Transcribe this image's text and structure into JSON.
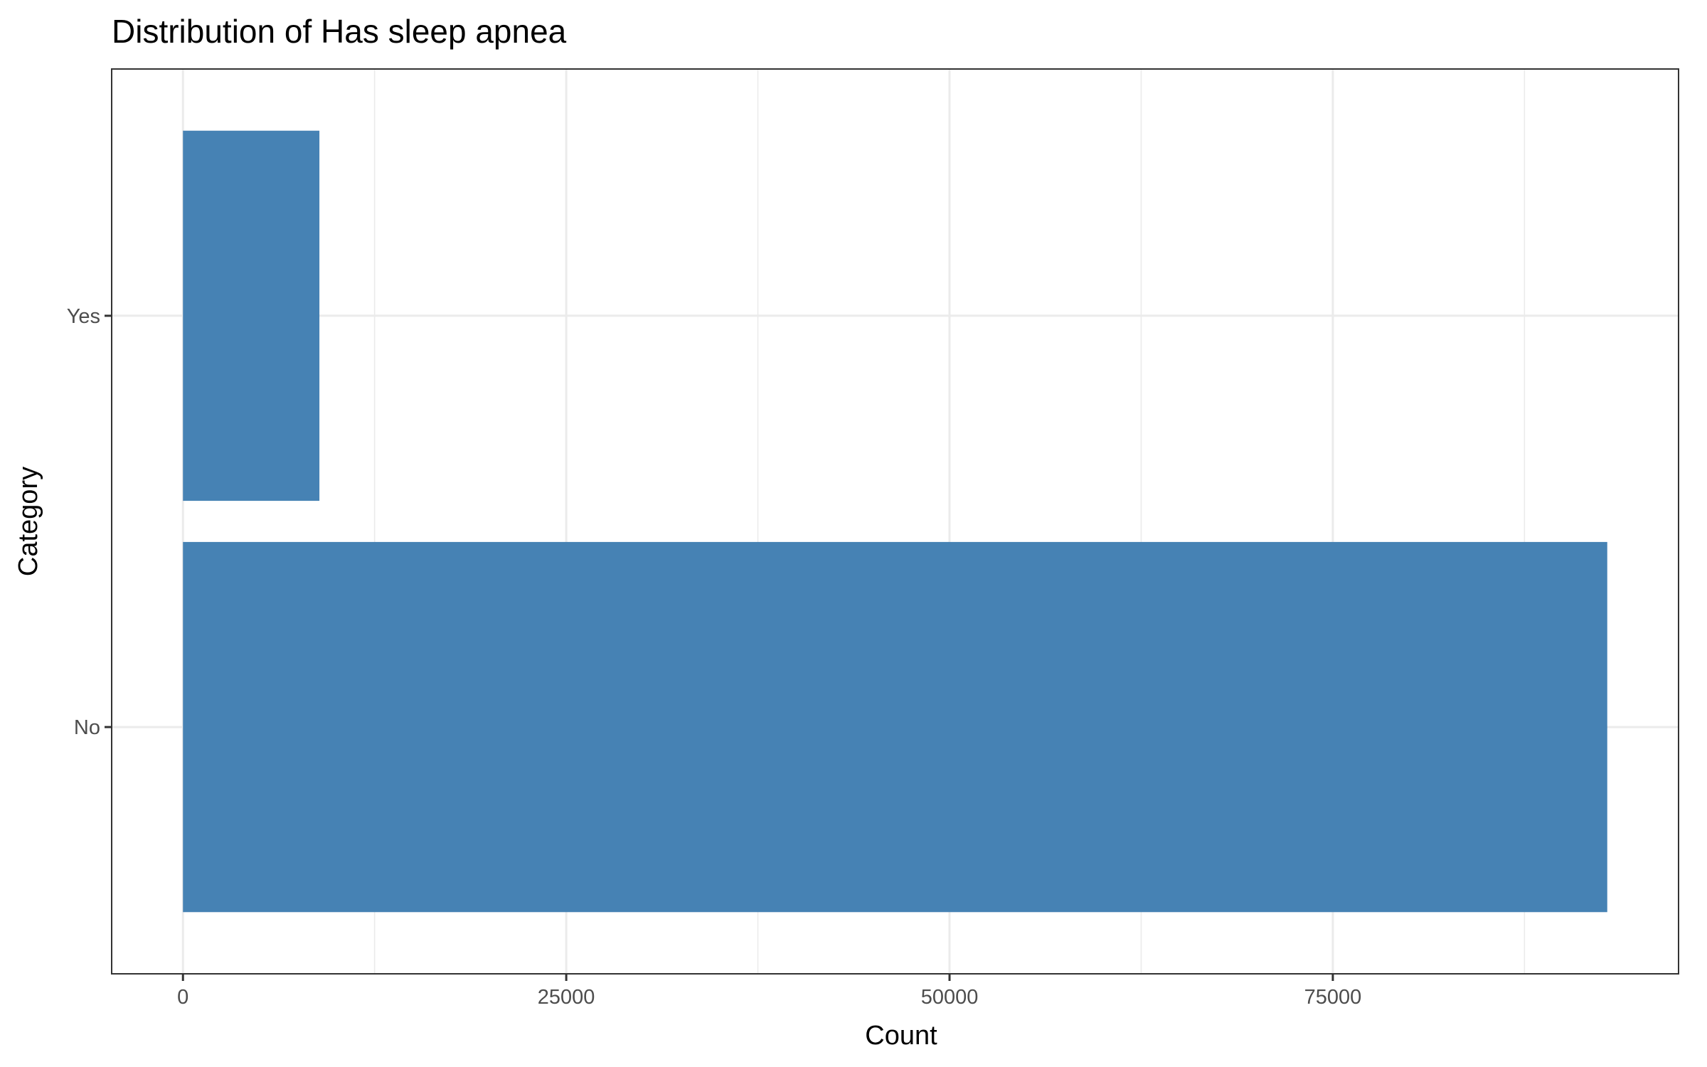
{
  "chart_data": {
    "type": "bar",
    "orientation": "horizontal",
    "title": "Distribution of Has sleep apnea",
    "xlabel": "Count",
    "ylabel": "Category",
    "categories": [
      "No",
      "Yes"
    ],
    "values": [
      92900,
      8900
    ],
    "xlim": [
      -4650,
      97550
    ],
    "xticks": [
      0,
      25000,
      50000,
      75000
    ],
    "xtick_labels": [
      "0",
      "25000",
      "50000",
      "75000"
    ],
    "grid": true,
    "legend": "none",
    "bar_color": "#4682b4",
    "theme": "bw"
  }
}
